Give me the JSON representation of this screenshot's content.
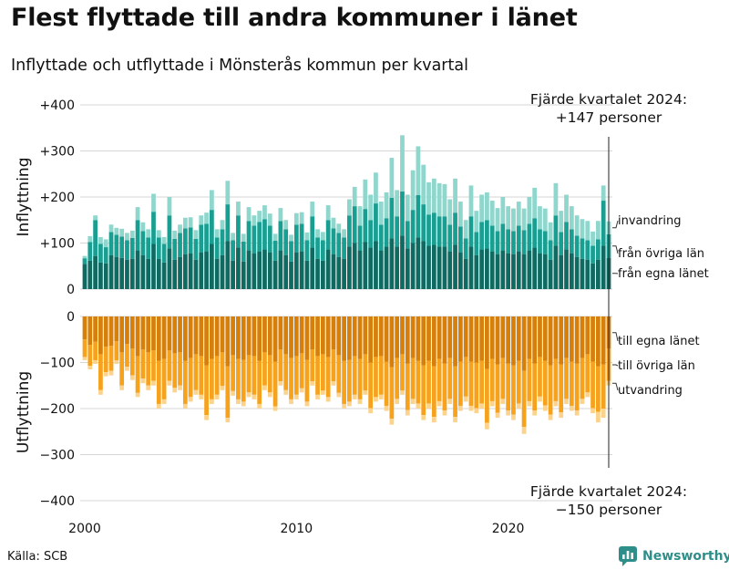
{
  "title": "Flest flyttade till andra kommuner i länet",
  "subtitle": "Inflyttade och utflyttade i Mönsterås kommun per kvartal",
  "source": "Källa: SCB",
  "brand": "Newsworthy",
  "chart_data": {
    "type": "bar",
    "stacked": true,
    "xlabel": "",
    "x_ticks": [
      "2000",
      "2010",
      "2020"
    ],
    "panels": [
      {
        "name": "inflyttning",
        "ylabel": "Inflyttning",
        "ylim": [
          0,
          400
        ],
        "yticks": [
          "0",
          "+100",
          "+200",
          "+300",
          "+400"
        ],
        "annotation_line1": "Fjärde kvartalet 2024:",
        "annotation_line2": "+147 personer",
        "total_last": 147,
        "series_names": [
          "från egna länet",
          "från övriga län",
          "invandring"
        ],
        "colors": [
          "#0f6b62",
          "#199f91",
          "#8fd6cc"
        ]
      },
      {
        "name": "utflyttning",
        "ylabel": "Utflyttning",
        "ylim": [
          -400,
          0
        ],
        "yticks": [
          "0",
          "−100",
          "−200",
          "−300",
          "−400"
        ],
        "annotation_line1": "Fjärde kvartalet 2024:",
        "annotation_line2": "−150 personer",
        "total_last": -150,
        "series_names": [
          "till egna länet",
          "till övriga län",
          "utvandring"
        ],
        "colors": [
          "#d67f0a",
          "#f6a21d",
          "#fcd38d"
        ]
      }
    ],
    "periods": [
      "2000K1",
      "2000K2",
      "2000K3",
      "2000K4",
      "2001K1",
      "2001K2",
      "2001K3",
      "2001K4",
      "2002K1",
      "2002K2",
      "2002K3",
      "2002K4",
      "2003K1",
      "2003K2",
      "2003K3",
      "2003K4",
      "2004K1",
      "2004K2",
      "2004K3",
      "2004K4",
      "2005K1",
      "2005K2",
      "2005K3",
      "2005K4",
      "2006K1",
      "2006K2",
      "2006K3",
      "2006K4",
      "2007K1",
      "2007K2",
      "2007K3",
      "2007K4",
      "2008K1",
      "2008K2",
      "2008K3",
      "2008K4",
      "2009K1",
      "2009K2",
      "2009K3",
      "2009K4",
      "2010K1",
      "2010K2",
      "2010K3",
      "2010K4",
      "2011K1",
      "2011K2",
      "2011K3",
      "2011K4",
      "2012K1",
      "2012K2",
      "2012K3",
      "2012K4",
      "2013K1",
      "2013K2",
      "2013K3",
      "2013K4",
      "2014K1",
      "2014K2",
      "2014K3",
      "2014K4",
      "2015K1",
      "2015K2",
      "2015K3",
      "2015K4",
      "2016K1",
      "2016K2",
      "2016K3",
      "2016K4",
      "2017K1",
      "2017K2",
      "2017K3",
      "2017K4",
      "2018K1",
      "2018K2",
      "2018K3",
      "2018K4",
      "2019K1",
      "2019K2",
      "2019K3",
      "2019K4",
      "2020K1",
      "2020K2",
      "2020K3",
      "2020K4",
      "2021K1",
      "2021K2",
      "2021K3",
      "2021K4",
      "2022K1",
      "2022K2",
      "2022K3",
      "2022K4",
      "2023K1",
      "2023K2",
      "2023K3",
      "2023K4",
      "2024K1",
      "2024K2",
      "2024K3",
      "2024K4"
    ],
    "in_total": [
      72,
      115,
      160,
      113,
      108,
      140,
      133,
      131,
      122,
      127,
      178,
      145,
      130,
      207,
      128,
      113,
      200,
      127,
      140,
      155,
      156,
      128,
      160,
      166,
      215,
      130,
      150,
      235,
      122,
      190,
      120,
      178,
      160,
      170,
      182,
      164,
      120,
      176,
      150,
      118,
      165,
      167,
      123,
      190,
      130,
      124,
      182,
      155,
      142,
      130,
      195,
      222,
      180,
      238,
      205,
      253,
      190,
      210,
      285,
      215,
      334,
      205,
      258,
      310,
      270,
      232,
      240,
      230,
      228,
      195,
      240,
      190,
      150,
      225,
      170,
      205,
      210,
      192,
      176,
      200,
      180,
      175,
      190,
      175,
      200,
      220,
      180,
      175,
      145,
      230,
      170,
      205,
      180,
      160,
      152,
      148,
      125,
      148,
      225,
      147
    ],
    "in_own_lan": [
      55,
      62,
      72,
      58,
      56,
      74,
      70,
      68,
      64,
      66,
      84,
      74,
      66,
      98,
      66,
      58,
      88,
      64,
      70,
      76,
      78,
      64,
      80,
      82,
      98,
      66,
      74,
      104,
      62,
      90,
      60,
      84,
      78,
      82,
      86,
      80,
      62,
      84,
      74,
      60,
      80,
      82,
      62,
      90,
      66,
      62,
      86,
      76,
      70,
      66,
      92,
      100,
      84,
      102,
      90,
      104,
      84,
      92,
      110,
      92,
      116,
      88,
      100,
      112,
      104,
      94,
      96,
      92,
      92,
      82,
      96,
      80,
      66,
      92,
      74,
      86,
      88,
      82,
      76,
      84,
      78,
      76,
      82,
      76,
      84,
      90,
      78,
      76,
      64,
      94,
      74,
      86,
      78,
      70,
      66,
      64,
      56,
      64,
      94,
      68
    ],
    "in_other_lan": [
      12,
      40,
      78,
      40,
      35,
      50,
      48,
      46,
      42,
      45,
      66,
      52,
      46,
      70,
      46,
      40,
      72,
      45,
      52,
      56,
      56,
      45,
      60,
      60,
      74,
      46,
      56,
      80,
      44,
      70,
      43,
      64,
      60,
      64,
      66,
      58,
      43,
      64,
      56,
      44,
      60,
      60,
      44,
      68,
      46,
      44,
      64,
      56,
      52,
      46,
      68,
      80,
      54,
      72,
      60,
      82,
      56,
      62,
      88,
      66,
      96,
      60,
      72,
      92,
      80,
      68,
      70,
      66,
      66,
      58,
      70,
      56,
      44,
      66,
      50,
      60,
      62,
      56,
      50,
      58,
      52,
      50,
      56,
      52,
      58,
      64,
      52,
      50,
      42,
      66,
      50,
      60,
      52,
      46,
      44,
      42,
      38,
      44,
      98,
      51
    ],
    "in_immigration": [
      5,
      13,
      10,
      15,
      17,
      16,
      15,
      17,
      16,
      16,
      28,
      19,
      18,
      39,
      16,
      15,
      40,
      18,
      18,
      23,
      22,
      19,
      20,
      24,
      43,
      18,
      20,
      51,
      16,
      30,
      17,
      30,
      22,
      24,
      30,
      26,
      15,
      28,
      20,
      14,
      25,
      25,
      17,
      32,
      18,
      18,
      32,
      23,
      20,
      18,
      35,
      42,
      42,
      64,
      55,
      67,
      50,
      56,
      87,
      57,
      122,
      57,
      86,
      106,
      86,
      70,
      74,
      72,
      70,
      55,
      74,
      54,
      40,
      67,
      46,
      59,
      60,
      54,
      50,
      58,
      50,
      49,
      52,
      47,
      58,
      66,
      50,
      49,
      39,
      70,
      46,
      59,
      50,
      44,
      42,
      42,
      31,
      40,
      33,
      28
    ],
    "out_total": [
      95,
      115,
      103,
      170,
      130,
      128,
      103,
      160,
      118,
      138,
      175,
      145,
      160,
      150,
      200,
      190,
      150,
      165,
      160,
      200,
      185,
      170,
      180,
      225,
      190,
      180,
      160,
      230,
      172,
      190,
      195,
      175,
      180,
      200,
      160,
      175,
      205,
      150,
      170,
      190,
      180,
      165,
      195,
      150,
      180,
      170,
      185,
      150,
      175,
      200,
      195,
      180,
      190,
      170,
      210,
      185,
      180,
      205,
      235,
      190,
      170,
      215,
      190,
      200,
      225,
      200,
      230,
      195,
      215,
      190,
      230,
      205,
      185,
      205,
      210,
      200,
      245,
      195,
      220,
      190,
      215,
      225,
      200,
      255,
      195,
      215,
      185,
      205,
      225,
      195,
      220,
      190,
      205,
      215,
      190,
      175,
      210,
      230,
      220,
      150
    ],
    "out_own_lan": [
      50,
      62,
      55,
      82,
      66,
      64,
      54,
      78,
      60,
      70,
      86,
      72,
      78,
      74,
      96,
      92,
      74,
      80,
      78,
      96,
      90,
      82,
      86,
      106,
      92,
      86,
      78,
      108,
      84,
      92,
      94,
      84,
      86,
      96,
      78,
      84,
      98,
      72,
      82,
      90,
      86,
      80,
      94,
      72,
      86,
      82,
      88,
      72,
      84,
      96,
      94,
      86,
      92,
      82,
      100,
      88,
      86,
      98,
      110,
      90,
      82,
      102,
      90,
      96,
      106,
      96,
      108,
      92,
      102,
      90,
      108,
      98,
      88,
      98,
      100,
      96,
      114,
      92,
      104,
      90,
      102,
      106,
      96,
      118,
      92,
      102,
      88,
      96,
      106,
      92,
      104,
      90,
      98,
      102,
      90,
      82,
      98,
      108,
      104,
      70
    ],
    "out_other_lan": [
      38,
      45,
      40,
      78,
      55,
      54,
      41,
      72,
      49,
      58,
      80,
      63,
      72,
      66,
      94,
      88,
      66,
      75,
      72,
      94,
      85,
      78,
      84,
      108,
      88,
      84,
      73,
      112,
      78,
      88,
      91,
      81,
      84,
      94,
      72,
      81,
      97,
      69,
      78,
      90,
      84,
      76,
      91,
      69,
      84,
      79,
      87,
      69,
      82,
      94,
      91,
      84,
      88,
      79,
      99,
      87,
      84,
      96,
      112,
      89,
      79,
      101,
      89,
      93,
      108,
      93,
      110,
      92,
      102,
      89,
      110,
      96,
      86,
      96,
      99,
      93,
      117,
      92,
      105,
      89,
      102,
      107,
      93,
      122,
      92,
      102,
      86,
      97,
      107,
      92,
      104,
      89,
      96,
      102,
      89,
      83,
      101,
      99,
      96,
      70
    ],
    "out_emigration": [
      7,
      8,
      8,
      10,
      9,
      10,
      8,
      10,
      9,
      10,
      9,
      10,
      10,
      10,
      10,
      10,
      10,
      10,
      10,
      10,
      10,
      10,
      10,
      11,
      10,
      10,
      9,
      10,
      10,
      10,
      10,
      10,
      10,
      10,
      10,
      10,
      10,
      9,
      10,
      10,
      10,
      9,
      10,
      9,
      10,
      9,
      10,
      9,
      9,
      10,
      10,
      10,
      10,
      9,
      11,
      10,
      10,
      11,
      13,
      11,
      9,
      12,
      11,
      11,
      11,
      11,
      12,
      11,
      11,
      11,
      12,
      11,
      11,
      11,
      11,
      11,
      14,
      11,
      11,
      11,
      11,
      12,
      11,
      15,
      11,
      11,
      11,
      12,
      12,
      11,
      12,
      11,
      11,
      11,
      11,
      10,
      11,
      23,
      20,
      10
    ]
  }
}
